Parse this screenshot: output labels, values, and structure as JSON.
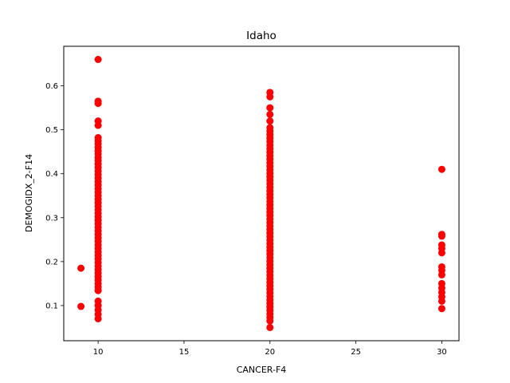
{
  "chart_data": {
    "type": "scatter",
    "title": "Idaho",
    "xlabel": "CANCER-F4",
    "ylabel": "DEMOGIDX_2-F14",
    "xlim": [
      8,
      31
    ],
    "ylim": [
      0.02,
      0.69
    ],
    "x_ticks": [
      10,
      15,
      20,
      25,
      30
    ],
    "y_ticks": [
      0.1,
      0.2,
      0.3,
      0.4,
      0.5,
      0.6
    ],
    "x_tick_labels": [
      "10",
      "15",
      "20",
      "25",
      "30"
    ],
    "y_tick_labels": [
      "0.1",
      "0.2",
      "0.3",
      "0.4",
      "0.5",
      "0.6"
    ],
    "grid": false,
    "legend": "none",
    "marker_color": "#ff0000",
    "series": [
      {
        "points": [
          [
            9,
            0.185
          ],
          [
            9,
            0.098
          ],
          [
            10,
            0.66
          ],
          [
            10,
            0.565
          ],
          [
            10,
            0.56
          ],
          [
            10,
            0.52
          ],
          [
            10,
            0.51
          ],
          [
            10,
            0.482
          ],
          [
            10,
            0.475
          ],
          [
            10,
            0.468
          ],
          [
            10,
            0.46
          ],
          [
            10,
            0.452
          ],
          [
            10,
            0.445
          ],
          [
            10,
            0.437
          ],
          [
            10,
            0.43
          ],
          [
            10,
            0.422
          ],
          [
            10,
            0.414
          ],
          [
            10,
            0.406
          ],
          [
            10,
            0.398
          ],
          [
            10,
            0.39
          ],
          [
            10,
            0.382
          ],
          [
            10,
            0.374
          ],
          [
            10,
            0.366
          ],
          [
            10,
            0.358
          ],
          [
            10,
            0.35
          ],
          [
            10,
            0.342
          ],
          [
            10,
            0.334
          ],
          [
            10,
            0.326
          ],
          [
            10,
            0.318
          ],
          [
            10,
            0.31
          ],
          [
            10,
            0.302
          ],
          [
            10,
            0.294
          ],
          [
            10,
            0.286
          ],
          [
            10,
            0.278
          ],
          [
            10,
            0.27
          ],
          [
            10,
            0.262
          ],
          [
            10,
            0.254
          ],
          [
            10,
            0.246
          ],
          [
            10,
            0.238
          ],
          [
            10,
            0.23
          ],
          [
            10,
            0.222
          ],
          [
            10,
            0.214
          ],
          [
            10,
            0.206
          ],
          [
            10,
            0.198
          ],
          [
            10,
            0.19
          ],
          [
            10,
            0.182
          ],
          [
            10,
            0.174
          ],
          [
            10,
            0.166
          ],
          [
            10,
            0.158
          ],
          [
            10,
            0.15
          ],
          [
            10,
            0.142
          ],
          [
            10,
            0.134
          ],
          [
            10,
            0.11
          ],
          [
            10,
            0.1
          ],
          [
            10,
            0.09
          ],
          [
            10,
            0.08
          ],
          [
            10,
            0.07
          ],
          [
            20,
            0.585
          ],
          [
            20,
            0.575
          ],
          [
            20,
            0.55
          ],
          [
            20,
            0.535
          ],
          [
            20,
            0.52
          ],
          [
            20,
            0.505
          ],
          [
            20,
            0.497
          ],
          [
            20,
            0.489
          ],
          [
            20,
            0.481
          ],
          [
            20,
            0.473
          ],
          [
            20,
            0.465
          ],
          [
            20,
            0.457
          ],
          [
            20,
            0.449
          ],
          [
            20,
            0.441
          ],
          [
            20,
            0.433
          ],
          [
            20,
            0.425
          ],
          [
            20,
            0.417
          ],
          [
            20,
            0.409
          ],
          [
            20,
            0.401
          ],
          [
            20,
            0.393
          ],
          [
            20,
            0.385
          ],
          [
            20,
            0.377
          ],
          [
            20,
            0.369
          ],
          [
            20,
            0.361
          ],
          [
            20,
            0.353
          ],
          [
            20,
            0.345
          ],
          [
            20,
            0.337
          ],
          [
            20,
            0.329
          ],
          [
            20,
            0.321
          ],
          [
            20,
            0.313
          ],
          [
            20,
            0.305
          ],
          [
            20,
            0.297
          ],
          [
            20,
            0.289
          ],
          [
            20,
            0.281
          ],
          [
            20,
            0.273
          ],
          [
            20,
            0.265
          ],
          [
            20,
            0.257
          ],
          [
            20,
            0.249
          ],
          [
            20,
            0.241
          ],
          [
            20,
            0.233
          ],
          [
            20,
            0.225
          ],
          [
            20,
            0.217
          ],
          [
            20,
            0.209
          ],
          [
            20,
            0.201
          ],
          [
            20,
            0.193
          ],
          [
            20,
            0.185
          ],
          [
            20,
            0.177
          ],
          [
            20,
            0.169
          ],
          [
            20,
            0.161
          ],
          [
            20,
            0.153
          ],
          [
            20,
            0.145
          ],
          [
            20,
            0.137
          ],
          [
            20,
            0.129
          ],
          [
            20,
            0.121
          ],
          [
            20,
            0.113
          ],
          [
            20,
            0.105
          ],
          [
            20,
            0.097
          ],
          [
            20,
            0.089
          ],
          [
            20,
            0.081
          ],
          [
            20,
            0.073
          ],
          [
            20,
            0.065
          ],
          [
            20,
            0.05
          ],
          [
            30,
            0.41
          ],
          [
            30,
            0.262
          ],
          [
            30,
            0.258
          ],
          [
            30,
            0.238
          ],
          [
            30,
            0.23
          ],
          [
            30,
            0.22
          ],
          [
            30,
            0.188
          ],
          [
            30,
            0.18
          ],
          [
            30,
            0.17
          ],
          [
            30,
            0.15
          ],
          [
            30,
            0.14
          ],
          [
            30,
            0.13
          ],
          [
            30,
            0.12
          ],
          [
            30,
            0.11
          ],
          [
            30,
            0.093
          ]
        ]
      }
    ]
  }
}
